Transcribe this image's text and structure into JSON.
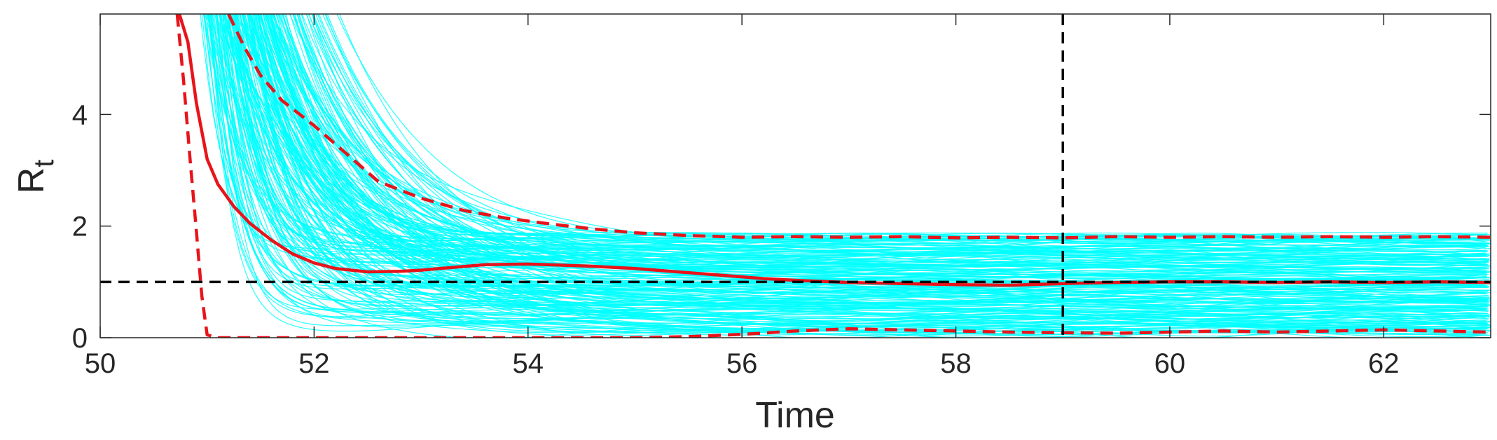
{
  "chart_data": {
    "type": "line",
    "title": "",
    "xlabel": "Time",
    "ylabel": "R",
    "ylabel_subscript": "t",
    "xlim": [
      50,
      63
    ],
    "ylim": [
      0,
      5.8
    ],
    "xticks": [
      50,
      52,
      54,
      56,
      58,
      60,
      62
    ],
    "yticks": [
      0,
      2,
      4
    ],
    "xtick_labels": [
      "50",
      "52",
      "54",
      "56",
      "58",
      "60",
      "62"
    ],
    "ytick_labels": [
      "0",
      "2",
      "4"
    ],
    "grid": false,
    "legend": "none",
    "reference_lines": [
      {
        "orientation": "horizontal",
        "value": 1,
        "style": "dashed",
        "color": "#000000"
      },
      {
        "orientation": "vertical",
        "value": 59,
        "style": "dashed",
        "color": "#000000"
      }
    ],
    "series": [
      {
        "role": "median",
        "style": "solid",
        "color": "#e8141b",
        "x": [
          50.74,
          50.82,
          50.9,
          51.0,
          51.1,
          51.25,
          51.4,
          51.6,
          51.8,
          52.0,
          52.2,
          52.5,
          52.8,
          53.0,
          53.3,
          53.6,
          54.0,
          54.3,
          54.6,
          55.0,
          55.4,
          55.8,
          56.2,
          56.6,
          57.0,
          57.5,
          58.0,
          58.5,
          59.0,
          59.5,
          60.0,
          60.5,
          61.0,
          61.5,
          62.0,
          62.5,
          63.0
        ],
        "values": [
          5.8,
          5.3,
          4.2,
          3.2,
          2.75,
          2.35,
          2.05,
          1.75,
          1.5,
          1.34,
          1.24,
          1.18,
          1.19,
          1.21,
          1.26,
          1.31,
          1.32,
          1.3,
          1.28,
          1.24,
          1.18,
          1.12,
          1.06,
          1.02,
          0.99,
          0.97,
          0.95,
          0.94,
          0.97,
          0.99,
          1.0,
          1.0,
          0.99,
          1.0,
          0.99,
          1.0,
          0.99
        ]
      },
      {
        "role": "upper-bound",
        "style": "dashed",
        "color": "#e8141b",
        "x": [
          51.2,
          51.35,
          51.5,
          51.7,
          52.0,
          52.3,
          52.6,
          53.0,
          53.4,
          53.8,
          54.2,
          54.6,
          55.0,
          55.5,
          56.0,
          56.5,
          57.0,
          57.5,
          58.0,
          58.5,
          59.0,
          59.5,
          60.0,
          60.5,
          61.0,
          61.5,
          62.0,
          62.5,
          63.0
        ],
        "values": [
          5.8,
          5.2,
          4.7,
          4.25,
          3.8,
          3.3,
          2.8,
          2.5,
          2.28,
          2.14,
          2.04,
          1.95,
          1.88,
          1.83,
          1.8,
          1.81,
          1.8,
          1.81,
          1.79,
          1.8,
          1.79,
          1.81,
          1.8,
          1.81,
          1.8,
          1.81,
          1.8,
          1.81,
          1.8
        ]
      },
      {
        "role": "lower-bound",
        "style": "dashed",
        "color": "#e8141b",
        "x": [
          50.72,
          50.78,
          50.84,
          50.9,
          50.95,
          51.0,
          51.1,
          51.5,
          52.0,
          53.0,
          54.0,
          55.0,
          55.5,
          56.0,
          56.5,
          57.0,
          57.5,
          58.0,
          58.5,
          59.0,
          59.5,
          60.0,
          60.5,
          61.0,
          61.5,
          62.0,
          62.5,
          63.0
        ],
        "values": [
          5.8,
          4.6,
          3.2,
          1.9,
          0.75,
          0.05,
          0.0,
          0.0,
          0.0,
          0.0,
          0.0,
          0.0,
          0.02,
          0.06,
          0.12,
          0.16,
          0.14,
          0.12,
          0.1,
          0.09,
          0.08,
          0.1,
          0.12,
          0.1,
          0.12,
          0.14,
          0.12,
          0.1
        ]
      }
    ],
    "ensemble": {
      "role": "sample-trajectories",
      "color": "#00ffff",
      "count": 220,
      "x_start": 50.85,
      "x_end": 63.0,
      "settle_range": [
        0.05,
        1.85
      ]
    }
  }
}
